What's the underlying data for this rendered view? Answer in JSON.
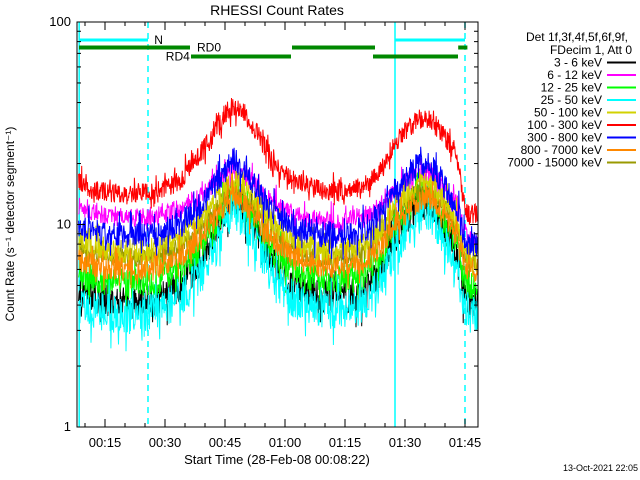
{
  "title": "RHESSI Count Rates",
  "footer_timestamp": "13-Oct-2021 22:05",
  "legend": {
    "header_lines": [
      "Det 1f,3f,4f,5f,6f,9f,",
      "FDecim 1, Att 0"
    ]
  },
  "chart_data": {
    "type": "line",
    "title": "RHESSI Count Rates",
    "xlabel": "Start Time (28-Feb-08 00:08:22)",
    "ylabel": "Count Rate (s⁻¹ detector segment⁻¹)",
    "y_scale": "log",
    "y_range": [
      1,
      100
    ],
    "y_major_ticks": [
      {
        "value": 100,
        "label": "100"
      },
      {
        "value": 10,
        "label": "10"
      },
      {
        "value": 1,
        "label": "1"
      }
    ],
    "x_unit_minutes_after": "28-Feb-08 00:00",
    "x_range_minutes": [
      8.4,
      108.1
    ],
    "x_major_ticks": [
      {
        "t": 15,
        "label": "00:15"
      },
      {
        "t": 30,
        "label": "00:30"
      },
      {
        "t": 45,
        "label": "00:45"
      },
      {
        "t": 60,
        "label": "01:00"
      },
      {
        "t": 75,
        "label": "01:15"
      },
      {
        "t": 90,
        "label": "01:30"
      },
      {
        "t": 105,
        "label": "01:45"
      }
    ],
    "x_minor_step_minutes": 5,
    "grid": false,
    "legend_position": "right-outside",
    "series": [
      {
        "name": "3 - 6 keV",
        "color": "#000000",
        "noise": 0.085,
        "points": [
          [
            8.4,
            4.7
          ],
          [
            12,
            4.4
          ],
          [
            20,
            4.1
          ],
          [
            28,
            4.3
          ],
          [
            34,
            5.0
          ],
          [
            40,
            7.0
          ],
          [
            44,
            10.5
          ],
          [
            47,
            14.0
          ],
          [
            50,
            12.0
          ],
          [
            54,
            8.5
          ],
          [
            58,
            6.1
          ],
          [
            62,
            5.0
          ],
          [
            68,
            4.5
          ],
          [
            74,
            4.3
          ],
          [
            80,
            4.7
          ],
          [
            84,
            6.0
          ],
          [
            88,
            8.8
          ],
          [
            93,
            12.5
          ],
          [
            96,
            13.0
          ],
          [
            100,
            9.5
          ],
          [
            103,
            6.8
          ],
          [
            104.5,
            4.8
          ],
          [
            106,
            4.2
          ],
          [
            108,
            4.2
          ]
        ]
      },
      {
        "name": "6 - 12 keV",
        "color": "#ff00ff",
        "noise": 0.05,
        "points": [
          [
            8.4,
            12.5
          ],
          [
            12,
            11.5
          ],
          [
            20,
            10.8
          ],
          [
            28,
            11.0
          ],
          [
            34,
            12.0
          ],
          [
            40,
            14.5
          ],
          [
            44,
            17.0
          ],
          [
            47,
            19.0
          ],
          [
            50,
            17.5
          ],
          [
            54,
            14.5
          ],
          [
            58,
            12.5
          ],
          [
            62,
            11.2
          ],
          [
            68,
            10.5
          ],
          [
            74,
            10.3
          ],
          [
            80,
            11.0
          ],
          [
            84,
            12.5
          ],
          [
            88,
            15.0
          ],
          [
            93,
            17.5
          ],
          [
            96,
            18.0
          ],
          [
            100,
            15.0
          ],
          [
            103,
            12.5
          ],
          [
            104.5,
            9.5
          ],
          [
            106,
            8.5
          ],
          [
            108,
            8.5
          ]
        ]
      },
      {
        "name": "12 - 25 keV",
        "color": "#00ff00",
        "noise": 0.075,
        "points": [
          [
            8.4,
            5.7
          ],
          [
            12,
            5.4
          ],
          [
            20,
            5.1
          ],
          [
            28,
            5.3
          ],
          [
            34,
            6.0
          ],
          [
            40,
            8.2
          ],
          [
            44,
            11.5
          ],
          [
            47,
            15.0
          ],
          [
            50,
            12.5
          ],
          [
            54,
            9.2
          ],
          [
            58,
            7.0
          ],
          [
            62,
            5.9
          ],
          [
            68,
            5.4
          ],
          [
            74,
            5.2
          ],
          [
            80,
            5.7
          ],
          [
            84,
            7.0
          ],
          [
            88,
            9.8
          ],
          [
            93,
            13.5
          ],
          [
            96,
            14.0
          ],
          [
            100,
            10.0
          ],
          [
            103,
            7.8
          ],
          [
            104.5,
            5.7
          ],
          [
            106,
            5.0
          ],
          [
            108,
            5.0
          ]
        ]
      },
      {
        "name": "25 - 50 keV",
        "color": "#00ffff",
        "noise": 0.095,
        "points": [
          [
            8.4,
            4.0
          ],
          [
            12,
            3.8
          ],
          [
            20,
            3.5
          ],
          [
            28,
            3.7
          ],
          [
            34,
            4.3
          ],
          [
            40,
            6.0
          ],
          [
            44,
            9.0
          ],
          [
            47,
            12.5
          ],
          [
            50,
            10.0
          ],
          [
            54,
            7.2
          ],
          [
            58,
            5.2
          ],
          [
            62,
            4.3
          ],
          [
            68,
            3.9
          ],
          [
            74,
            3.7
          ],
          [
            80,
            4.1
          ],
          [
            84,
            5.2
          ],
          [
            88,
            7.6
          ],
          [
            93,
            11.0
          ],
          [
            96,
            11.5
          ],
          [
            100,
            8.0
          ],
          [
            103,
            6.0
          ],
          [
            104.5,
            4.2
          ],
          [
            106,
            3.6
          ],
          [
            108,
            3.7
          ]
        ]
      },
      {
        "name": "50 - 100 keV",
        "color": "#d2d200",
        "noise": 0.06,
        "points": [
          [
            8.4,
            8.2
          ],
          [
            12,
            7.8
          ],
          [
            20,
            7.4
          ],
          [
            28,
            7.6
          ],
          [
            34,
            8.4
          ],
          [
            40,
            11.0
          ],
          [
            44,
            14.0
          ],
          [
            47,
            16.5
          ],
          [
            50,
            15.0
          ],
          [
            54,
            12.0
          ],
          [
            58,
            9.5
          ],
          [
            62,
            8.2
          ],
          [
            68,
            7.6
          ],
          [
            74,
            7.4
          ],
          [
            80,
            8.0
          ],
          [
            84,
            9.5
          ],
          [
            88,
            12.5
          ],
          [
            93,
            15.5
          ],
          [
            96,
            16.0
          ],
          [
            100,
            13.0
          ],
          [
            103,
            10.5
          ],
          [
            104.5,
            8.0
          ],
          [
            106,
            7.0
          ],
          [
            108,
            7.0
          ]
        ]
      },
      {
        "name": "100 - 300 keV",
        "color": "#ff0000",
        "noise": 0.05,
        "points": [
          [
            8.4,
            16.0
          ],
          [
            12,
            14.8
          ],
          [
            20,
            14.0
          ],
          [
            28,
            14.5
          ],
          [
            34,
            16.5
          ],
          [
            40,
            24.0
          ],
          [
            44,
            33.0
          ],
          [
            47,
            39.0
          ],
          [
            50,
            35.0
          ],
          [
            54,
            26.0
          ],
          [
            58,
            19.0
          ],
          [
            62,
            16.5
          ],
          [
            68,
            15.0
          ],
          [
            74,
            14.5
          ],
          [
            80,
            15.5
          ],
          [
            84,
            19.0
          ],
          [
            88,
            26.0
          ],
          [
            93,
            33.0
          ],
          [
            96,
            33.5
          ],
          [
            100,
            27.0
          ],
          [
            103,
            22.0
          ],
          [
            104.5,
            13.0
          ],
          [
            106,
            11.0
          ],
          [
            108,
            11.5
          ]
        ]
      },
      {
        "name": "300 - 800 keV",
        "color": "#0000ff",
        "noise": 0.065,
        "points": [
          [
            8.4,
            9.8
          ],
          [
            12,
            9.2
          ],
          [
            20,
            8.8
          ],
          [
            28,
            9.0
          ],
          [
            34,
            10.0
          ],
          [
            40,
            13.0
          ],
          [
            44,
            17.0
          ],
          [
            47,
            21.0
          ],
          [
            50,
            18.5
          ],
          [
            54,
            14.0
          ],
          [
            58,
            11.0
          ],
          [
            62,
            9.8
          ],
          [
            68,
            9.0
          ],
          [
            74,
            8.8
          ],
          [
            80,
            9.5
          ],
          [
            84,
            11.5
          ],
          [
            88,
            15.0
          ],
          [
            93,
            19.5
          ],
          [
            96,
            20.0
          ],
          [
            100,
            15.5
          ],
          [
            103,
            12.0
          ],
          [
            104.5,
            9.0
          ],
          [
            106,
            7.8
          ],
          [
            108,
            8.0
          ]
        ]
      },
      {
        "name": "800 - 7000 keV",
        "color": "#ff8800",
        "noise": 0.06,
        "points": [
          [
            8.4,
            6.6
          ],
          [
            12,
            6.3
          ],
          [
            20,
            6.0
          ],
          [
            28,
            6.2
          ],
          [
            34,
            6.9
          ],
          [
            40,
            9.0
          ],
          [
            44,
            11.5
          ],
          [
            47,
            14.0
          ],
          [
            50,
            12.5
          ],
          [
            54,
            10.0
          ],
          [
            58,
            8.0
          ],
          [
            62,
            6.9
          ],
          [
            68,
            6.3
          ],
          [
            74,
            6.1
          ],
          [
            80,
            6.6
          ],
          [
            84,
            7.8
          ],
          [
            88,
            10.5
          ],
          [
            93,
            13.0
          ],
          [
            96,
            13.5
          ],
          [
            100,
            11.0
          ],
          [
            103,
            8.8
          ],
          [
            104.5,
            6.7
          ],
          [
            106,
            5.9
          ],
          [
            108,
            5.9
          ]
        ]
      },
      {
        "name": "7000 - 15000 keV",
        "color": "#9a9a00",
        "noise": 0.05,
        "points": [
          [
            8.4,
            7.5
          ],
          [
            12,
            7.2
          ],
          [
            20,
            6.8
          ],
          [
            28,
            7.0
          ],
          [
            34,
            7.7
          ],
          [
            40,
            10.0
          ],
          [
            44,
            13.0
          ],
          [
            47,
            15.2
          ],
          [
            50,
            13.8
          ],
          [
            54,
            11.0
          ],
          [
            58,
            8.8
          ],
          [
            62,
            7.6
          ],
          [
            68,
            7.0
          ],
          [
            74,
            6.8
          ],
          [
            80,
            7.4
          ],
          [
            84,
            8.8
          ],
          [
            88,
            11.5
          ],
          [
            93,
            14.2
          ],
          [
            96,
            14.6
          ],
          [
            100,
            12.0
          ],
          [
            103,
            9.7
          ],
          [
            104.5,
            7.4
          ],
          [
            106,
            6.5
          ],
          [
            108,
            6.5
          ]
        ]
      }
    ],
    "draw_order": [
      0,
      1,
      2,
      3,
      8,
      4,
      7,
      6,
      5
    ],
    "annotations": {
      "vlines": [
        {
          "t": 8.55,
          "style": "solid",
          "color": "#00ffff"
        },
        {
          "t": 25.75,
          "style": "dashed",
          "color": "#00ffff"
        },
        {
          "t": 87.5,
          "style": "solid",
          "color": "#00ffff"
        },
        {
          "t": 105,
          "style": "dashed",
          "color": "#00ffff"
        }
      ],
      "flag_bars": [
        {
          "label": "N",
          "color": "#00ffff",
          "row_y": 40,
          "thickness": 3,
          "label_t": 27.3,
          "segments": [
            [
              8.5,
              25.75
            ],
            [
              87.5,
              105.0
            ]
          ]
        },
        {
          "label": "RD0",
          "color": "#008800",
          "row_y": 47.5,
          "thickness": 4,
          "label_t": 38.0,
          "segments": [
            [
              8.5,
              36.25
            ],
            [
              61.75,
              82.5
            ],
            [
              103.3,
              105.6
            ]
          ]
        },
        {
          "label": "RD4",
          "color": "#008800",
          "row_y": 56.5,
          "thickness": 4,
          "label_t": 30.2,
          "segments": [
            [
              36.5,
              61.5
            ],
            [
              82.0,
              103.25
            ]
          ]
        }
      ]
    }
  }
}
